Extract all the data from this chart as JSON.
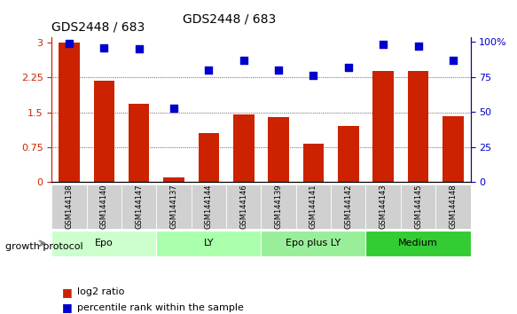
{
  "title": "GDS2448 / 683",
  "samples": [
    "GSM144138",
    "GSM144140",
    "GSM144147",
    "GSM144137",
    "GSM144144",
    "GSM144146",
    "GSM144139",
    "GSM144141",
    "GSM144142",
    "GSM144143",
    "GSM144145",
    "GSM144148"
  ],
  "log2_ratio": [
    3.0,
    2.18,
    1.68,
    0.1,
    1.05,
    1.45,
    1.4,
    0.82,
    1.2,
    2.38,
    2.38,
    1.42
  ],
  "percentile_rank": [
    99,
    96,
    95,
    53,
    80,
    87,
    80,
    76,
    82,
    98,
    97,
    87
  ],
  "bar_color": "#cc2200",
  "dot_color": "#0000cc",
  "groups": [
    {
      "label": "Epo",
      "start": 0,
      "end": 3,
      "color": "#ccffcc"
    },
    {
      "label": "LY",
      "start": 3,
      "end": 6,
      "color": "#aaffaa"
    },
    {
      "label": "Epo plus LY",
      "start": 6,
      "end": 9,
      "color": "#99ee99"
    },
    {
      "label": "Medium",
      "start": 9,
      "end": 12,
      "color": "#33cc33"
    }
  ],
  "ylim_left": [
    0,
    3.1
  ],
  "ylim_right": [
    0,
    103
  ],
  "yticks_left": [
    0,
    0.75,
    1.5,
    2.25,
    3.0
  ],
  "ytick_labels_left": [
    "0",
    "0.75",
    "1.5",
    "2.25",
    "3"
  ],
  "yticks_right": [
    0,
    25,
    50,
    75,
    100
  ],
  "ytick_labels_right": [
    "0",
    "25",
    "50",
    "75",
    "100%"
  ],
  "grid_lines": [
    0.75,
    1.5,
    2.25
  ],
  "legend_labels": [
    "log2 ratio",
    "percentile rank within the sample"
  ],
  "growth_protocol_label": "growth protocol",
  "background_color": "#ffffff",
  "xlabel_color": "#cc2200",
  "ylabel_right_color": "#0000cc"
}
